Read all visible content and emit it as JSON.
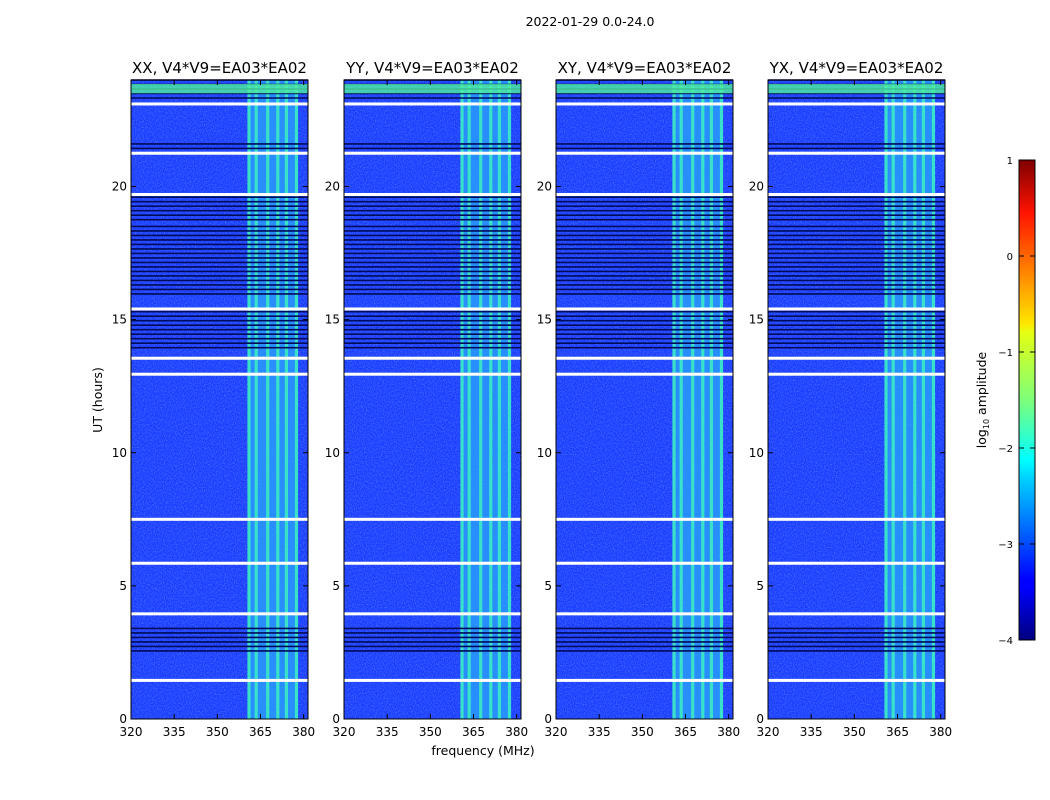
{
  "figure": {
    "suptitle": "2022-01-29 0.0-24.0",
    "xlabel": "frequency (MHz)",
    "ylabel": "UT (hours)",
    "colorbar_label_prefix": "log",
    "colorbar_label_sub": "10",
    "colorbar_label_suffix": " amplitude"
  },
  "chart_data": {
    "type": "heatmap",
    "panels": [
      {
        "title": "XX, V4*V9=EA03*EA02"
      },
      {
        "title": "YY, V4*V9=EA03*EA02"
      },
      {
        "title": "XY, V4*V9=EA03*EA02"
      },
      {
        "title": "YX, V4*V9=EA03*EA02"
      }
    ],
    "xlim": [
      320,
      381.5
    ],
    "ylim": [
      0,
      24
    ],
    "xticks": [
      320,
      335,
      350,
      365,
      380
    ],
    "xtick_labels": [
      "320",
      "335",
      "350",
      "365",
      "380"
    ],
    "yticks": [
      0,
      5,
      10,
      15,
      20
    ],
    "ytick_labels": [
      "0",
      "5",
      "10",
      "15",
      "20"
    ],
    "colorbar": {
      "range": [
        -4,
        1
      ],
      "ticks": [
        1,
        0,
        -1,
        -2,
        -3,
        -4
      ],
      "tick_labels": [
        "1",
        "0",
        "−1",
        "−2",
        "−3",
        "−4"
      ],
      "colormap": "jet"
    },
    "rfi_band_mhz": [
      360.5,
      378
    ],
    "rfi_channels_mhz": [
      361,
      363.5,
      367.5,
      371,
      374,
      377.5
    ],
    "flagged_rows_ut": [
      1.45,
      3.95,
      5.85,
      7.5,
      12.95,
      13.55,
      15.4,
      19.7,
      21.25,
      23.1
    ],
    "noisy_bands_ut": [
      [
        2.5,
        3.4
      ],
      [
        13.8,
        15.3
      ],
      [
        15.9,
        18.5
      ],
      [
        18.6,
        19.6
      ],
      [
        21.4,
        21.6
      ],
      [
        23.3,
        24
      ]
    ],
    "typical_log_amplitude": -3.3,
    "rfi_log_amplitude": -1.9,
    "colors": {
      "background_level": "#1a3cff",
      "rfi_level": "#3cf0c0",
      "flagged": "#ffffff"
    }
  }
}
